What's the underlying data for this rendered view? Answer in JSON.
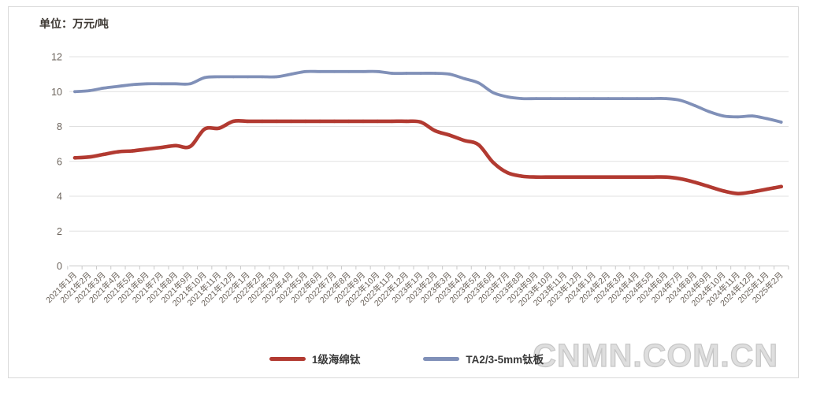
{
  "unit_label": "单位：万元/吨",
  "watermark": "CNMN.COM.CN",
  "colors": {
    "sponge_line": "#b23a31",
    "plate_line": "#8090b8",
    "grid": "#e0e0e0",
    "axis": "#c9c9c9",
    "tick_text": "#6b635b",
    "frame": "#d9d9d9"
  },
  "legend": {
    "items": [
      {
        "label": "1级海绵钛",
        "color": "#b23a31"
      },
      {
        "label": "TA2/3-5mm钛板",
        "color": "#8090b8"
      }
    ]
  },
  "chart_data": {
    "type": "line",
    "title": "单位：万元/吨",
    "xlabel": "",
    "ylabel": "万元/吨",
    "ylim": [
      0,
      12
    ],
    "yticks": [
      0,
      2,
      4,
      6,
      8,
      10,
      12
    ],
    "grid": true,
    "legend_position": "bottom",
    "x": [
      "2021年1月",
      "2021年2月",
      "2021年3月",
      "2021年4月",
      "2021年5月",
      "2021年6月",
      "2021年7月",
      "2021年8月",
      "2021年9月",
      "2021年10月",
      "2021年11月",
      "2021年12月",
      "2022年1月",
      "2022年2月",
      "2022年3月",
      "2022年4月",
      "2022年5月",
      "2022年6月",
      "2022年7月",
      "2022年8月",
      "2022年9月",
      "2022年10月",
      "2022年11月",
      "2022年12月",
      "2023年1月",
      "2023年2月",
      "2023年3月",
      "2023年4月",
      "2023年5月",
      "2023年6月",
      "2023年7月",
      "2023年8月",
      "2023年9月",
      "2023年10月",
      "2023年11月",
      "2023年12月",
      "2024年1月",
      "2024年2月",
      "2024年3月",
      "2024年4月",
      "2024年5月",
      "2024年6月",
      "2024年7月",
      "2024年8月",
      "2024年9月",
      "2024年10月",
      "2024年11月",
      "2024年12月",
      "2025年1月",
      "2025年2月"
    ],
    "series": [
      {
        "name": "1级海绵钛",
        "color": "#b23a31",
        "values": [
          6.2,
          6.25,
          6.4,
          6.55,
          6.6,
          6.7,
          6.8,
          6.9,
          6.85,
          7.85,
          7.9,
          8.3,
          8.3,
          8.3,
          8.3,
          8.3,
          8.3,
          8.3,
          8.3,
          8.3,
          8.3,
          8.3,
          8.3,
          8.3,
          8.25,
          7.75,
          7.5,
          7.2,
          6.95,
          5.95,
          5.35,
          5.15,
          5.1,
          5.1,
          5.1,
          5.1,
          5.1,
          5.1,
          5.1,
          5.1,
          5.1,
          5.1,
          5.0,
          4.8,
          4.55,
          4.3,
          4.15,
          4.25,
          4.4,
          4.55
        ]
      },
      {
        "name": "TA2/3-5mm钛板",
        "color": "#8090b8",
        "values": [
          10.0,
          10.05,
          10.2,
          10.3,
          10.4,
          10.45,
          10.45,
          10.45,
          10.45,
          10.8,
          10.85,
          10.85,
          10.85,
          10.85,
          10.85,
          11.0,
          11.15,
          11.15,
          11.15,
          11.15,
          11.15,
          11.15,
          11.05,
          11.05,
          11.05,
          11.05,
          11.0,
          10.75,
          10.5,
          9.95,
          9.7,
          9.6,
          9.6,
          9.6,
          9.6,
          9.6,
          9.6,
          9.6,
          9.6,
          9.6,
          9.6,
          9.6,
          9.5,
          9.2,
          8.85,
          8.6,
          8.55,
          8.6,
          8.45,
          8.25
        ]
      }
    ]
  }
}
